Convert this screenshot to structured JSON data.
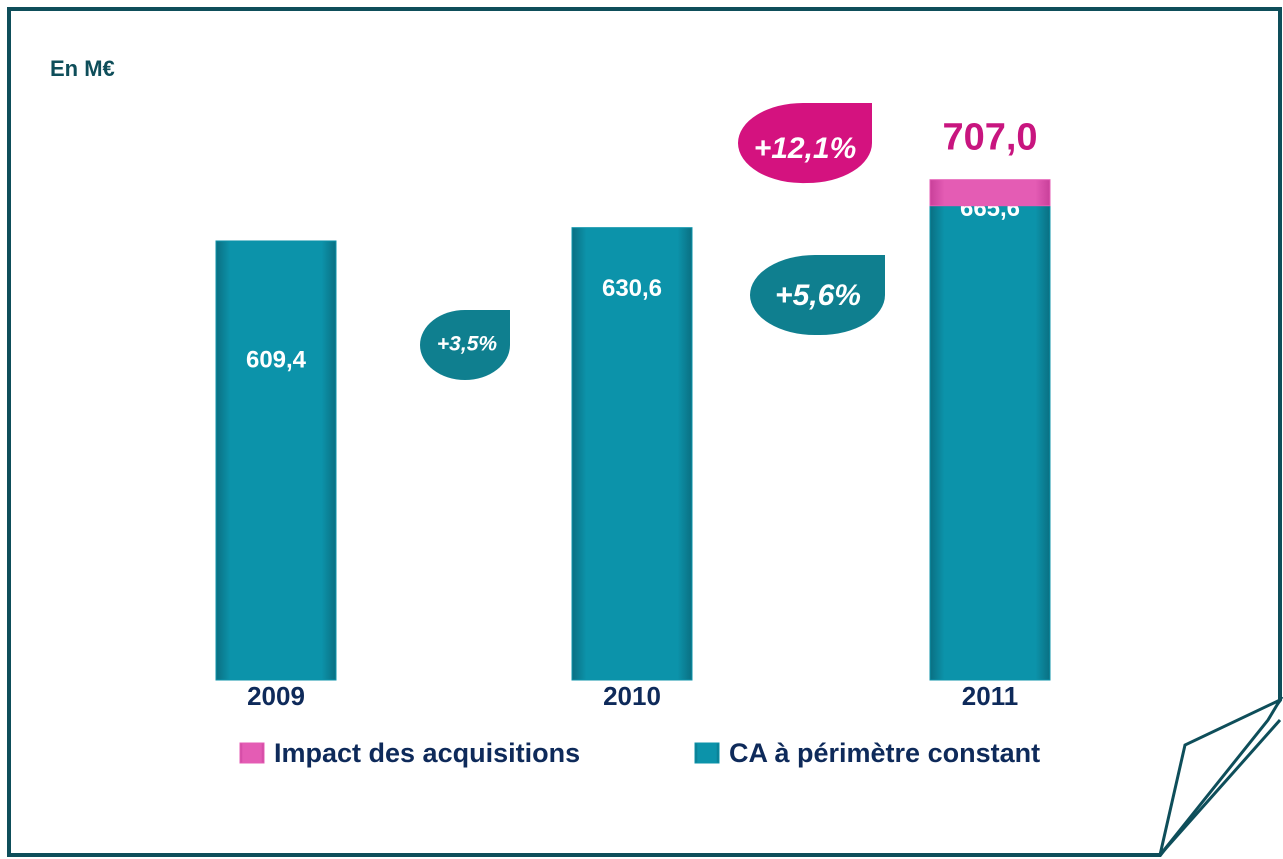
{
  "chart_data": {
    "type": "stacked_bar",
    "subtitle": "En M€",
    "categories": [
      "2009",
      "2010",
      "2011"
    ],
    "series": [
      {
        "name": "CA à périmètre constant",
        "color": "#0c93aa",
        "values": [
          609.4,
          630.6,
          665.6
        ],
        "value_labels": [
          "609,4",
          "630,6",
          "665,6"
        ]
      },
      {
        "name": "Impact des acquisitions",
        "color": "#e45cb4",
        "values": [
          null,
          null,
          41.4
        ]
      }
    ],
    "total_label": {
      "value": 707.0,
      "label": "707,0"
    },
    "annotations": [
      "+3,5%",
      "+5,6%",
      "+12,1%"
    ],
    "ylim": [
      -90,
      740
    ]
  }
}
